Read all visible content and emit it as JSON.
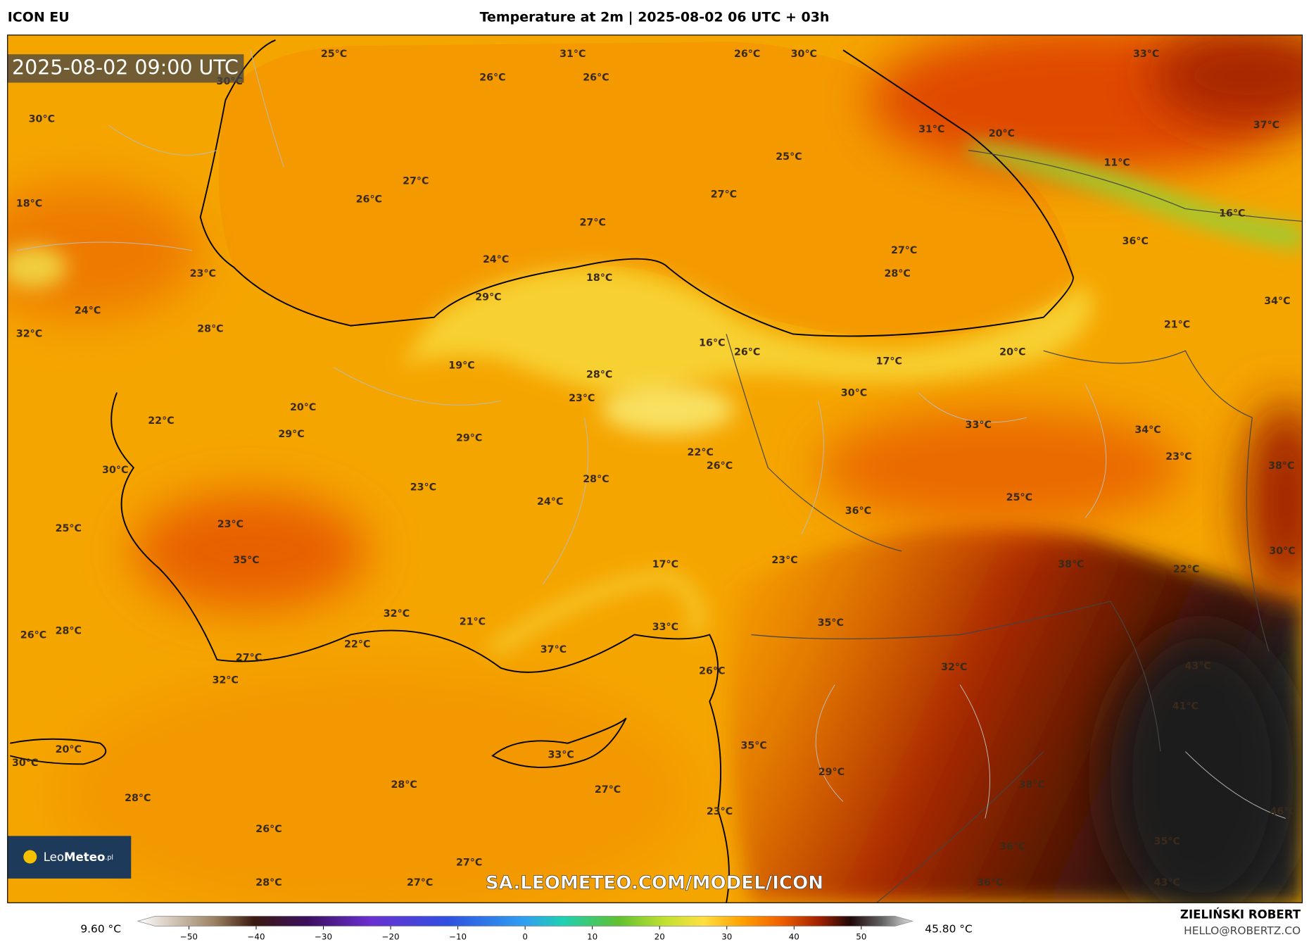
{
  "header": {
    "model": "ICON EU",
    "title": "Temperature at 2m | 2025-08-02 06 UTC + 03h",
    "valid_time": "2025-08-02 09:00 UTC"
  },
  "map": {
    "labels": [
      "25°C",
      "31°C",
      "26°C",
      "30°C",
      "33°C",
      "26°C",
      "26°C",
      "30°C",
      "30°C",
      "31°C",
      "20°C",
      "37°C",
      "25°C",
      "11°C",
      "27°C",
      "26°C",
      "27°C",
      "18°C",
      "27°C",
      "16°C",
      "36°C",
      "27°C",
      "28°C",
      "24°C",
      "23°C",
      "18°C",
      "29°C",
      "34°C",
      "24°C",
      "21°C",
      "28°C",
      "32°C",
      "16°C",
      "26°C",
      "20°C",
      "17°C",
      "19°C",
      "28°C",
      "30°C",
      "23°C",
      "20°C",
      "22°C",
      "29°C",
      "33°C",
      "34°C",
      "29°C",
      "22°C",
      "23°C",
      "26°C",
      "38°C",
      "30°C",
      "28°C",
      "23°C",
      "25°C",
      "24°C",
      "36°C",
      "25°C",
      "23°C",
      "30°C",
      "35°C",
      "23°C",
      "17°C",
      "38°C",
      "22°C",
      "32°C",
      "21°C",
      "35°C",
      "33°C",
      "26°C",
      "28°C",
      "22°C",
      "37°C",
      "27°C",
      "32°C",
      "43°C",
      "26°C",
      "32°C",
      "41°C",
      "35°C",
      "20°C",
      "33°C",
      "30°C",
      "29°C",
      "28°C",
      "27°C",
      "38°C",
      "28°C",
      "23°C",
      "46°C",
      "26°C",
      "35°C",
      "36°C",
      "27°C",
      "28°C",
      "27°C",
      "36°C",
      "43°C"
    ],
    "watermark": "SA.LEOMETEO.COM/MODEL/ICON",
    "logo": {
      "brand_a": "Leo",
      "brand_b": "Meteo",
      "suffix": ".pl"
    }
  },
  "colorbar": {
    "min_label": "9.60 °C",
    "max_label": "45.80 °C",
    "ticks": [
      {
        "value": -50,
        "label": "−50"
      },
      {
        "value": -40,
        "label": "−40"
      },
      {
        "value": -30,
        "label": "−30"
      },
      {
        "value": -20,
        "label": "−20"
      },
      {
        "value": -10,
        "label": "−10"
      },
      0,
      10,
      20,
      30,
      40,
      50
    ],
    "range": [
      -55,
      55
    ]
  },
  "footer": {
    "author": "ZIELIŃSKI ROBERT",
    "email": "HELLO@ROBERTZ.CO"
  }
}
